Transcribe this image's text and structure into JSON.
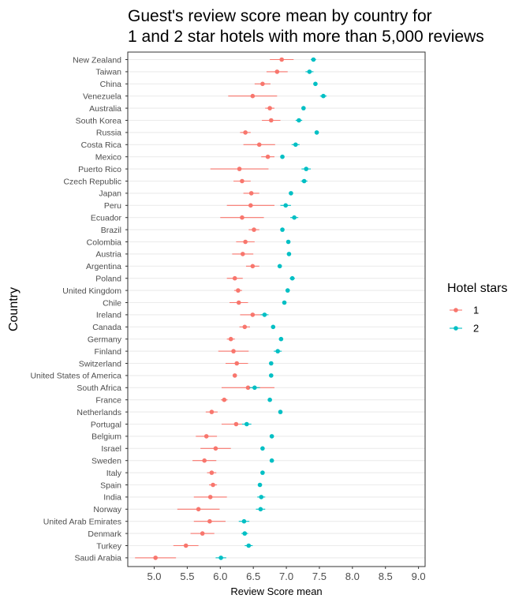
{
  "chart_data": {
    "type": "scatter",
    "title_lines": [
      "Guest's review score mean by country for",
      "1 and 2 star hotels with more than 5,000 reviews"
    ],
    "xlabel": "Review Score mean",
    "ylabel": "Country",
    "xlim": [
      4.6,
      9.1
    ],
    "xticks": [
      5.0,
      5.5,
      6.0,
      6.5,
      7.0,
      7.5,
      8.0,
      8.5,
      9.0
    ],
    "xtick_labels": [
      "5.0",
      "5.5",
      "6.0",
      "6.5",
      "7.0",
      "7.5",
      "8.0",
      "8.5",
      "9.0"
    ],
    "grid": true,
    "legend_title": "Hotel stars",
    "legend_position": "right",
    "categories": [
      "New Zealand",
      "Taiwan",
      "China",
      "Venezuela",
      "Australia",
      "South Korea",
      "Russia",
      "Costa Rica",
      "Mexico",
      "Puerto Rico",
      "Czech Republic",
      "Japan",
      "Peru",
      "Ecuador",
      "Brazil",
      "Colombia",
      "Austria",
      "Argentina",
      "Poland",
      "United Kingdom",
      "Chile",
      "Ireland",
      "Canada",
      "Germany",
      "Finland",
      "Switzerland",
      "United States of America",
      "South Africa",
      "France",
      "Netherlands",
      "Portugal",
      "Belgium",
      "Israel",
      "Sweden",
      "Italy",
      "Spain",
      "India",
      "Norway",
      "United Arab Emirates",
      "Denmark",
      "Turkey",
      "Saudi Arabia"
    ],
    "series": [
      {
        "name": "1",
        "color": "#F8766D",
        "mean": [
          6.93,
          6.86,
          6.64,
          6.49,
          6.75,
          6.77,
          6.38,
          6.59,
          6.72,
          6.29,
          6.33,
          6.47,
          6.46,
          6.33,
          6.51,
          6.38,
          6.34,
          6.49,
          6.22,
          6.27,
          6.28,
          6.49,
          6.37,
          6.16,
          6.2,
          6.25,
          6.22,
          6.42,
          6.06,
          5.87,
          6.24,
          5.79,
          5.93,
          5.76,
          5.87,
          5.89,
          5.85,
          5.67,
          5.84,
          5.73,
          5.48,
          5.02
        ],
        "low": [
          6.75,
          6.7,
          6.52,
          6.12,
          6.68,
          6.63,
          6.3,
          6.35,
          6.62,
          5.85,
          6.2,
          6.35,
          6.1,
          6.0,
          6.43,
          6.24,
          6.18,
          6.39,
          6.1,
          6.21,
          6.14,
          6.3,
          6.29,
          6.1,
          5.97,
          6.08,
          6.2,
          6.02,
          6.01,
          5.78,
          6.02,
          5.63,
          5.7,
          5.58,
          5.8,
          5.83,
          5.6,
          5.35,
          5.6,
          5.55,
          5.29,
          4.71
        ],
        "high": [
          7.11,
          7.02,
          6.76,
          6.86,
          6.82,
          6.91,
          6.46,
          6.83,
          6.82,
          6.73,
          6.46,
          6.59,
          6.82,
          6.66,
          6.59,
          6.52,
          6.5,
          6.59,
          6.34,
          6.33,
          6.42,
          6.68,
          6.45,
          6.22,
          6.43,
          6.42,
          6.24,
          6.82,
          6.11,
          5.96,
          6.46,
          5.95,
          6.16,
          5.94,
          5.94,
          5.95,
          6.1,
          5.99,
          6.08,
          5.91,
          5.67,
          5.33
        ]
      },
      {
        "name": "2",
        "color": "#00BFC4",
        "mean": [
          7.41,
          7.35,
          7.44,
          7.56,
          7.26,
          7.19,
          7.46,
          7.14,
          6.94,
          7.3,
          7.27,
          7.07,
          6.99,
          7.12,
          6.94,
          7.03,
          7.04,
          6.9,
          7.09,
          7.02,
          6.97,
          6.67,
          6.8,
          6.92,
          6.87,
          6.77,
          6.77,
          6.52,
          6.75,
          6.91,
          6.4,
          6.78,
          6.64,
          6.78,
          6.64,
          6.6,
          6.62,
          6.61,
          6.36,
          6.37,
          6.43,
          6.01
        ],
        "low": [
          7.37,
          7.29,
          7.41,
          7.51,
          7.23,
          7.14,
          7.43,
          7.08,
          6.91,
          7.23,
          7.22,
          7.04,
          6.91,
          7.06,
          6.91,
          7.0,
          7.01,
          6.87,
          7.05,
          7.0,
          6.94,
          6.61,
          6.77,
          6.89,
          6.81,
          6.74,
          6.74,
          6.44,
          6.72,
          6.89,
          6.33,
          6.75,
          6.61,
          6.75,
          6.61,
          6.57,
          6.56,
          6.54,
          6.28,
          6.32,
          6.37,
          5.93
        ],
        "high": [
          7.45,
          7.41,
          7.47,
          7.61,
          7.29,
          7.24,
          7.49,
          7.2,
          6.97,
          7.37,
          7.32,
          7.1,
          7.07,
          7.18,
          6.97,
          7.06,
          7.07,
          6.93,
          7.13,
          7.04,
          7.0,
          6.73,
          6.83,
          6.95,
          6.93,
          6.8,
          6.8,
          6.6,
          6.78,
          6.93,
          6.47,
          6.81,
          6.67,
          6.81,
          6.67,
          6.63,
          6.68,
          6.68,
          6.44,
          6.42,
          6.49,
          6.09
        ]
      }
    ]
  }
}
